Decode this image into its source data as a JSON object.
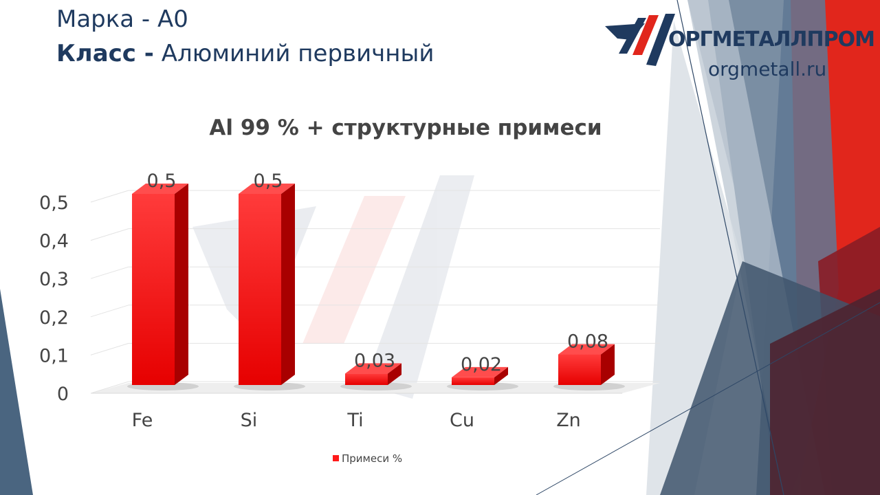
{
  "header": {
    "line1": "Марка - А0",
    "line2_bold": "Класс -",
    "line2_rest": " Алюминий первичный"
  },
  "brand": {
    "name": "ОРГМЕТАЛЛПРОМ",
    "site": "orgmetall.ru",
    "colors": {
      "navy": "#1f3a5f",
      "red": "#e1261c"
    }
  },
  "chart_data": {
    "type": "bar",
    "title": "Al 99 % + структурные примеси",
    "categories": [
      "Fe",
      "Si",
      "Ti",
      "Cu",
      "Zn"
    ],
    "series": [
      {
        "name": "Примеси %",
        "values": [
          0.5,
          0.5,
          0.03,
          0.02,
          0.08
        ],
        "labels": [
          "0,5",
          "0,5",
          "0,03",
          "0,02",
          "0,08"
        ]
      }
    ],
    "yticks": [
      "0",
      "0,1",
      "0,2",
      "0,3",
      "0,4",
      "0,5"
    ],
    "ylim": [
      0,
      0.5
    ],
    "grid": true,
    "legend": "bottom",
    "bar_color": "#ff1a1a"
  }
}
